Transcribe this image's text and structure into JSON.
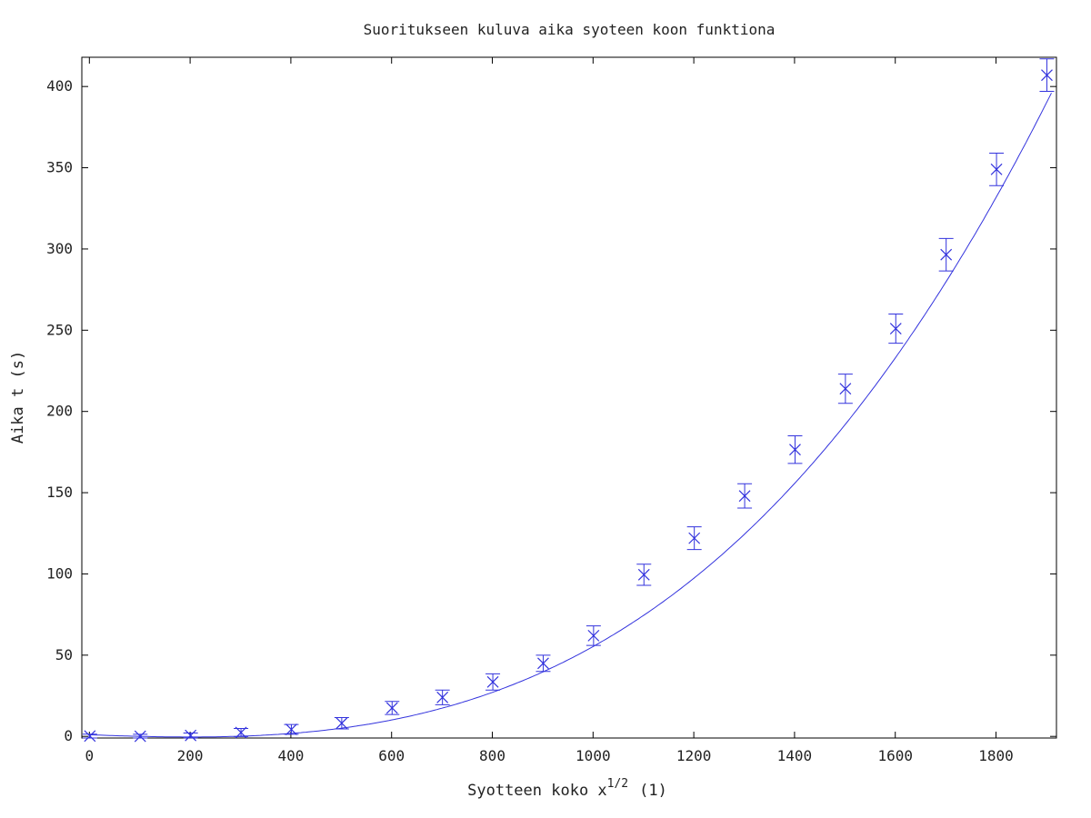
{
  "chart_data": {
    "type": "scatter",
    "title": "Suoritukseen kuluva aika syoteen koon funktiona",
    "xlabel": {
      "prefix": "Syotteen koko x",
      "superscript": "1/2",
      "suffix": "(1)"
    },
    "ylabel": "Aika t (s)",
    "xlim": [
      -15,
      1920
    ],
    "ylim": [
      -1,
      418
    ],
    "xticks": [
      0,
      200,
      400,
      600,
      800,
      1000,
      1200,
      1400,
      1600,
      1800
    ],
    "yticks": [
      0,
      50,
      100,
      150,
      200,
      250,
      300,
      350,
      400
    ],
    "grid": false,
    "legend": "none",
    "series": [
      {
        "marker": "x",
        "color": "#3333dd",
        "x": [
          1,
          101,
          201,
          301,
          401,
          501,
          601,
          701,
          801,
          901,
          1001,
          1101,
          1201,
          1301,
          1401,
          1501,
          1601,
          1701,
          1801,
          1901
        ],
        "y": [
          0.2,
          0.1,
          0.6,
          2.4,
          4.3,
          8.1,
          17.5,
          24,
          33.5,
          45,
          62,
          99.5,
          122,
          148,
          176.5,
          214,
          251,
          296.5,
          349,
          407
        ],
        "error": [
          1.2,
          1.2,
          1.5,
          2.5,
          3,
          3.5,
          4,
          4.5,
          5,
          5,
          6,
          6.5,
          7,
          7.5,
          8.5,
          9,
          9,
          10,
          10,
          10
        ]
      },
      {
        "kind": "fit",
        "color": "#3333dd",
        "coefficients": {
          "a": 1.0,
          "b": -0.0115,
          "c": 1.25e-05,
          "d": 5.33e-08
        }
      }
    ]
  }
}
